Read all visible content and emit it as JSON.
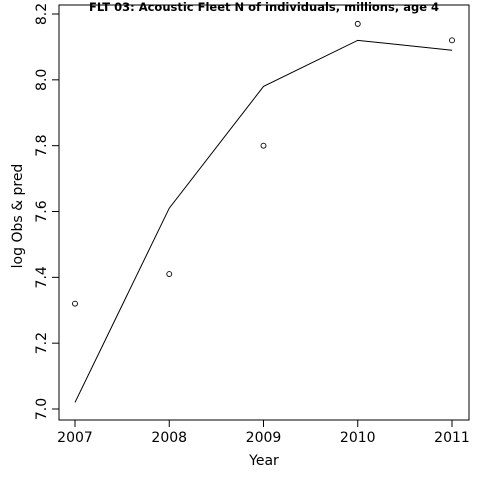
{
  "chart_data": {
    "type": "line",
    "title": "FLT 03: Acoustic Fleet  N of individuals, millions, age 4",
    "xlabel": "Year",
    "ylabel": "log Obs & pred",
    "x": [
      2007,
      2008,
      2009,
      2010,
      2011
    ],
    "xticks": [
      "2007",
      "2008",
      "2009",
      "2010",
      "2011"
    ],
    "yticks": [
      "7.0",
      "7.2",
      "7.4",
      "7.6",
      "7.8",
      "8.0",
      "8.2"
    ],
    "xlim": [
      2006.96,
      2011.16
    ],
    "ylim": [
      7.0,
      8.22
    ],
    "series": [
      {
        "kind": "points",
        "values": [
          7.32,
          7.41,
          7.8,
          8.17,
          8.12
        ]
      },
      {
        "kind": "line",
        "values": [
          7.02,
          7.61,
          7.98,
          8.12,
          8.09
        ]
      }
    ],
    "grid": false
  }
}
